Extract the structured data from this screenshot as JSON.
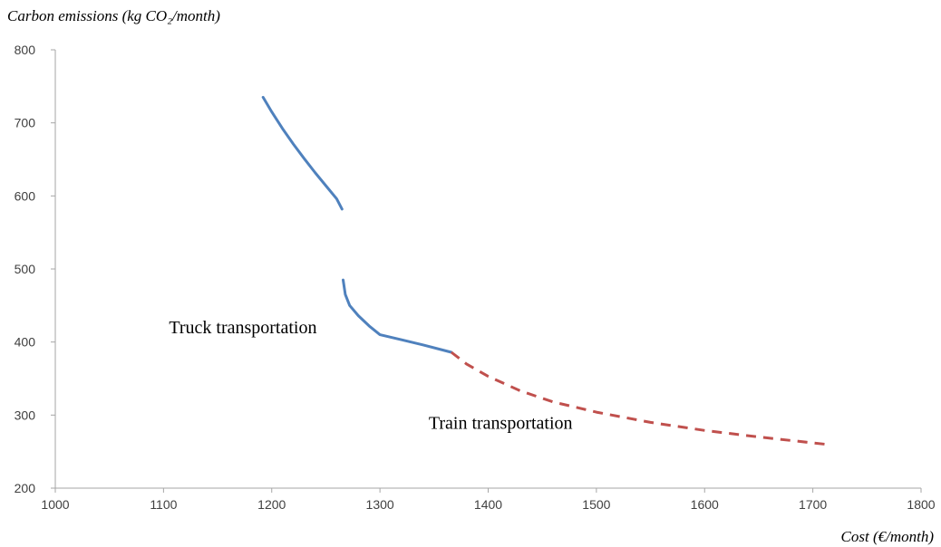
{
  "chart_data": {
    "type": "line",
    "title": "",
    "ylabel": "Carbon emissions (kg CO₂/month)",
    "xlabel": "Cost  (€/month)",
    "xlim": [
      1000,
      1800
    ],
    "ylim": [
      200,
      800
    ],
    "xticks": [
      "1000",
      "1100",
      "1200",
      "1300",
      "1400",
      "1500",
      "1600",
      "1700",
      "1800"
    ],
    "yticks": [
      "200",
      "300",
      "400",
      "500",
      "600",
      "700",
      "800"
    ],
    "grid": false,
    "series": [
      {
        "color": "#4f81bd",
        "dash": "solid",
        "segments": [
          [
            [
              1192,
              735
            ],
            [
              1200,
              715
            ],
            [
              1210,
              692
            ],
            [
              1220,
              671
            ],
            [
              1230,
              651
            ],
            [
              1240,
              632
            ],
            [
              1250,
              614
            ],
            [
              1260,
              596
            ],
            [
              1265,
              582
            ]
          ],
          [
            [
              1266,
              485
            ],
            [
              1268,
              465
            ],
            [
              1272,
              450
            ],
            [
              1280,
              436
            ],
            [
              1290,
              422
            ],
            [
              1300,
              410
            ],
            [
              1320,
              403
            ],
            [
              1340,
              396
            ],
            [
              1366,
              386
            ]
          ]
        ]
      },
      {
        "color": "#c0504d",
        "dash": "dashed",
        "segments": [
          [
            [
              1366,
              386
            ],
            [
              1380,
              370
            ],
            [
              1400,
              353
            ],
            [
              1430,
              333
            ],
            [
              1460,
              318
            ],
            [
              1500,
              304
            ],
            [
              1550,
              290
            ],
            [
              1600,
              279
            ],
            [
              1650,
              270
            ],
            [
              1712,
              260
            ]
          ]
        ]
      }
    ],
    "annotations": [
      {
        "text": "Truck transportation",
        "x": 1105,
        "y": 412
      },
      {
        "text": "Train transportation",
        "x": 1345,
        "y": 281
      }
    ]
  }
}
